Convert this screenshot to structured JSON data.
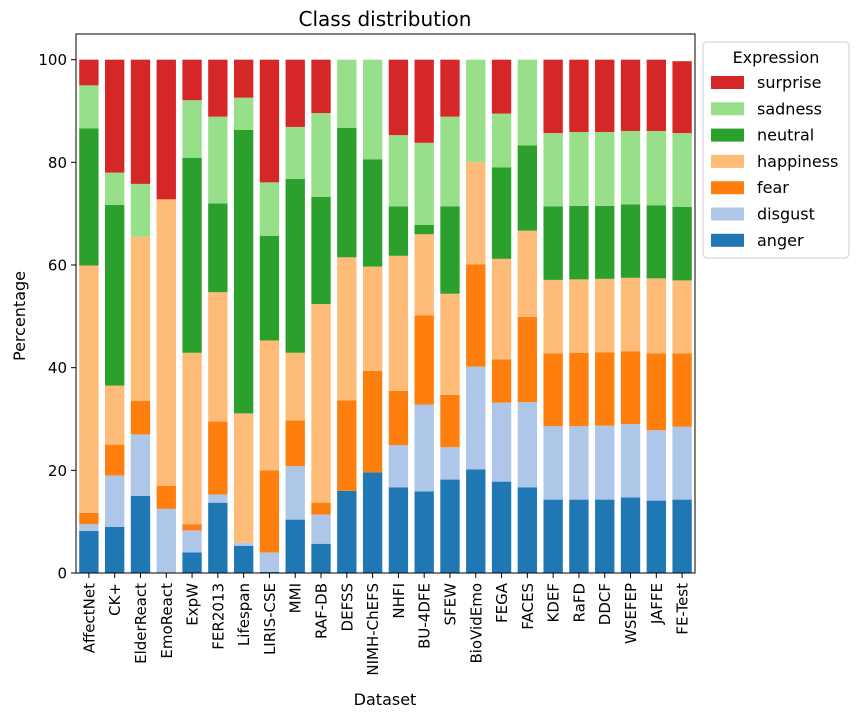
{
  "chart_data": {
    "type": "bar",
    "stacked": true,
    "title": "Class distribution",
    "xlabel": "Dataset",
    "ylabel": "Percentage",
    "ylim": [
      0,
      105
    ],
    "yticks": [
      0,
      20,
      40,
      60,
      80,
      100
    ],
    "grid": false,
    "legend_title": "Expression",
    "legend_position": "outside-top-right",
    "categories": [
      "AffectNet",
      "CK+",
      "ElderReact",
      "EmoReact",
      "ExpW",
      "FER2013",
      "Lifespan",
      "LIRIS-CSE",
      "MMI",
      "RAF-DB",
      "DEFSS",
      "NIMH-ChEFS",
      "NHFI",
      "BU-4DFE",
      "SFEW",
      "BioVidEmo",
      "FEGA",
      "FACES",
      "KDEF",
      "RaFD",
      "DDCF",
      "WSEFEP",
      "JAFFE",
      "FE-Test"
    ],
    "series": [
      {
        "name": "anger",
        "color": "#1f77b4",
        "values": [
          8.2,
          9.0,
          15.0,
          0.0,
          4.0,
          13.7,
          5.3,
          0.2,
          10.4,
          5.7,
          16.0,
          19.6,
          16.7,
          15.9,
          18.2,
          20.2,
          17.8,
          16.7,
          14.3,
          14.3,
          14.3,
          14.7,
          14.1,
          14.3
        ]
      },
      {
        "name": "disgust",
        "color": "#aec7e8",
        "values": [
          1.3,
          10.0,
          12.0,
          12.5,
          4.3,
          1.6,
          0.6,
          3.8,
          10.4,
          5.7,
          0.0,
          0.0,
          8.2,
          16.9,
          6.3,
          20.0,
          15.4,
          16.6,
          14.3,
          14.3,
          14.4,
          14.3,
          13.7,
          14.2
        ]
      },
      {
        "name": "fear",
        "color": "#ff7f0e",
        "values": [
          2.2,
          6.0,
          6.5,
          4.5,
          1.2,
          14.2,
          0.0,
          16.0,
          8.9,
          2.3,
          17.6,
          19.8,
          10.6,
          17.4,
          10.2,
          19.9,
          8.4,
          16.6,
          14.2,
          14.3,
          14.3,
          14.2,
          15.0,
          14.3
        ]
      },
      {
        "name": "happiness",
        "color": "#ffbb78",
        "values": [
          48.2,
          11.5,
          32.0,
          55.8,
          33.4,
          25.2,
          25.2,
          25.3,
          13.2,
          38.7,
          27.9,
          20.3,
          26.3,
          15.8,
          19.7,
          20.0,
          19.6,
          16.8,
          14.3,
          14.3,
          14.3,
          14.3,
          14.6,
          14.2
        ]
      },
      {
        "name": "neutral",
        "color": "#2ca02c",
        "values": [
          26.7,
          35.2,
          0.0,
          0.0,
          38.0,
          17.3,
          55.2,
          20.4,
          33.9,
          20.9,
          25.2,
          20.9,
          9.6,
          1.8,
          17.0,
          0.0,
          17.8,
          16.6,
          14.3,
          14.3,
          14.2,
          14.3,
          14.2,
          14.3
        ]
      },
      {
        "name": "sadness",
        "color": "#98df8a",
        "values": [
          8.4,
          6.3,
          10.3,
          0.0,
          11.2,
          16.9,
          6.3,
          10.4,
          10.1,
          16.3,
          13.3,
          19.4,
          13.9,
          16.0,
          17.5,
          19.9,
          10.5,
          16.7,
          14.3,
          14.4,
          14.4,
          14.3,
          14.5,
          14.4
        ]
      },
      {
        "name": "surprise",
        "color": "#d62728",
        "values": [
          5.0,
          22.0,
          24.2,
          27.2,
          7.9,
          11.1,
          7.4,
          23.9,
          13.1,
          10.4,
          0.0,
          0.0,
          14.7,
          16.2,
          11.1,
          0.0,
          10.5,
          0.0,
          14.3,
          14.1,
          14.1,
          13.9,
          13.9,
          14.0
        ]
      }
    ]
  }
}
